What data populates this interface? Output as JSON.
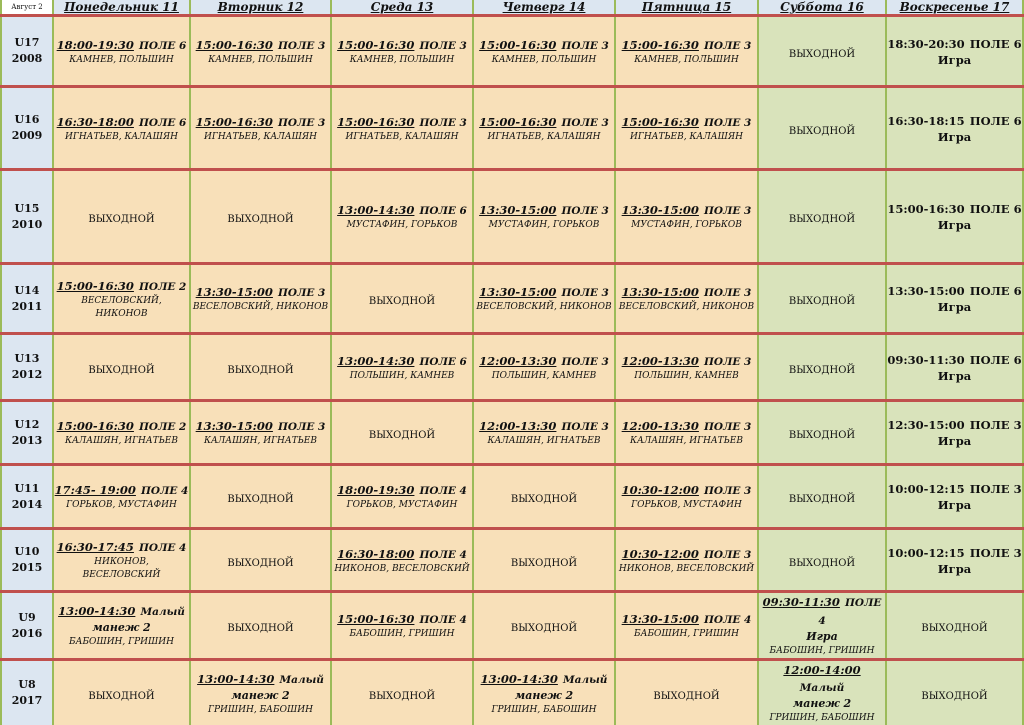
{
  "corner": "Август 2",
  "days": [
    "Понедельник 11",
    "Вторник 12",
    "Среда 13",
    "Четверг 14",
    "Пятница 15",
    "Суббота 16",
    "Воскресенье 17"
  ],
  "off_label": "ВЫХОДНОЙ",
  "colors": {
    "weekday_bg": "#f8e0b9",
    "weekend_bg": "#d9e3bb",
    "header_bg": "#dce6f1",
    "row_divider": "#c0504d",
    "column_divider": "#9bbb59"
  },
  "rows": [
    {
      "group": "U17",
      "year": "2008",
      "cells": [
        {
          "time": "18:00-19:30",
          "place": "ПОЛЕ 6",
          "coaches": "КАМНЕВ, ПОЛЬШИН"
        },
        {
          "time": "15:00-16:30",
          "place": "ПОЛЕ 3",
          "coaches": "КАМНЕВ, ПОЛЬШИН"
        },
        {
          "time": "15:00-16:30",
          "place": "ПОЛЕ 3",
          "coaches": "КАМНЕВ, ПОЛЬШИН"
        },
        {
          "time": "15:00-16:30",
          "place": "ПОЛЕ 3",
          "coaches": "КАМНЕВ, ПОЛЬШИН"
        },
        {
          "time": "15:00-16:30",
          "place": "ПОЛЕ 3",
          "coaches": "КАМНЕВ, ПОЛЬШИН"
        },
        {
          "off": "ВЫХОДНОЙ"
        },
        {
          "time": "18:30-20:30",
          "place": "ПОЛЕ 6",
          "extra": "Игра"
        }
      ]
    },
    {
      "group": "U16",
      "year": "2009",
      "cells": [
        {
          "time": "16:30-18:00",
          "place": "ПОЛЕ 6",
          "coaches": "ИГНАТЬЕВ, КАЛАШЯН"
        },
        {
          "time": "15:00-16:30",
          "place": "ПОЛЕ 3",
          "coaches": "ИГНАТЬЕВ, КАЛАШЯН"
        },
        {
          "time": "15:00-16:30",
          "place": "ПОЛЕ 3",
          "coaches": "ИГНАТЬЕВ, КАЛАШЯН"
        },
        {
          "time": "15:00-16:30",
          "place": "ПОЛЕ 3",
          "coaches": "ИГНАТЬЕВ, КАЛАШЯН"
        },
        {
          "time": "15:00-16:30",
          "place": "ПОЛЕ 3",
          "coaches": "ИГНАТЬЕВ, КАЛАШЯН"
        },
        {
          "off": "ВЫХОДНОЙ"
        },
        {
          "time": "16:30-18:15",
          "place": "ПОЛЕ 6",
          "extra": "Игра"
        }
      ]
    },
    {
      "group": "U15",
      "year": "2010",
      "cells": [
        {
          "off": "ВЫХОДНОЙ"
        },
        {
          "off": "ВЫХОДНОЙ"
        },
        {
          "time": "13:00-14:30",
          "place": "ПОЛЕ 6",
          "coaches": "МУСТАФИН, ГОРЬКОВ"
        },
        {
          "time": "13:30-15:00",
          "place": "ПОЛЕ 3",
          "coaches": "МУСТАФИН, ГОРЬКОВ"
        },
        {
          "time": "13:30-15:00",
          "place": "ПОЛЕ 3",
          "coaches": "МУСТАФИН, ГОРЬКОВ"
        },
        {
          "off": "ВЫХОДНОЙ"
        },
        {
          "time": "15:00-16:30",
          "place": "ПОЛЕ 6",
          "extra": "Игра"
        }
      ]
    },
    {
      "group": "U14",
      "year": "2011",
      "cells": [
        {
          "time": "15:00-16:30",
          "place": "ПОЛЕ 2",
          "coaches": "ВЕСЕЛОВСКИЙ, НИКОНОВ"
        },
        {
          "time": "13:30-15:00",
          "place": "ПОЛЕ 3",
          "coaches": "ВЕСЕЛОВСКИЙ, НИКОНОВ"
        },
        {
          "off": "ВЫХОДНОЙ"
        },
        {
          "time": "13:30-15:00",
          "place": "ПОЛЕ 3",
          "coaches": "ВЕСЕЛОВСКИЙ, НИКОНОВ"
        },
        {
          "time": "13:30-15:00",
          "place": "ПОЛЕ 3",
          "coaches": "ВЕСЕЛОВСКИЙ, НИКОНОВ"
        },
        {
          "off": "ВЫХОДНОЙ"
        },
        {
          "time": "13:30-15:00",
          "place": "ПОЛЕ 6",
          "extra": "Игра"
        }
      ]
    },
    {
      "group": "U13",
      "year": "2012",
      "cells": [
        {
          "off": "ВЫХОДНОЙ"
        },
        {
          "off": "ВЫХОДНОЙ"
        },
        {
          "time": "13:00-14:30",
          "place": "ПОЛЕ 6",
          "coaches": "ПОЛЬШИН, КАМНЕВ"
        },
        {
          "time": "12:00-13:30",
          "place": "ПОЛЕ 3",
          "coaches": "ПОЛЬШИН, КАМНЕВ"
        },
        {
          "time": "12:00-13:30",
          "place": "ПОЛЕ 3",
          "coaches": "ПОЛЬШИН, КАМНЕВ"
        },
        {
          "off": "ВЫХОДНОЙ"
        },
        {
          "time": "09:30-11:30",
          "place": "ПОЛЕ 6",
          "extra": "Игра"
        }
      ]
    },
    {
      "group": "U12",
      "year": "2013",
      "cells": [
        {
          "time": "15:00-16:30",
          "place": "ПОЛЕ 2",
          "coaches": "КАЛАШЯН, ИГНАТЬЕВ"
        },
        {
          "time": "13:30-15:00",
          "place": "ПОЛЕ 3",
          "coaches": "КАЛАШЯН, ИГНАТЬЕВ"
        },
        {
          "off": "ВЫХОДНОЙ"
        },
        {
          "time": "12:00-13:30",
          "place": "ПОЛЕ 3",
          "coaches": "КАЛАШЯН, ИГНАТЬЕВ"
        },
        {
          "time": "12:00-13:30",
          "place": "ПОЛЕ 3",
          "coaches": "КАЛАШЯН, ИГНАТЬЕВ"
        },
        {
          "off": "ВЫХОДНОЙ"
        },
        {
          "time": "12:30-15:00",
          "place": "ПОЛЕ 3",
          "extra": "Игра"
        }
      ]
    },
    {
      "group": "U11",
      "year": "2014",
      "cells": [
        {
          "time": "17:45- 19:00",
          "place": "ПОЛЕ 4",
          "coaches": "ГОРЬКОВ, МУСТАФИН"
        },
        {
          "off": "ВЫХОДНОЙ"
        },
        {
          "time": "18:00-19:30",
          "place": "ПОЛЕ 4",
          "coaches": "ГОРЬКОВ, МУСТАФИН"
        },
        {
          "off": "ВЫХОДНОЙ"
        },
        {
          "time": "10:30-12:00",
          "place": "ПОЛЕ 3",
          "coaches": "ГОРЬКОВ, МУСТАФИН"
        },
        {
          "off": "ВЫХОДНОЙ"
        },
        {
          "time": "10:00-12:15",
          "place": "ПОЛЕ 3",
          "extra": "Игра"
        }
      ]
    },
    {
      "group": "U10",
      "year": "2015",
      "cells": [
        {
          "time": "16:30-17:45",
          "place": "ПОЛЕ 4",
          "coaches": "НИКОНОВ, ВЕСЕЛОВСКИЙ"
        },
        {
          "off": "ВЫХОДНОЙ"
        },
        {
          "time": "16:30-18:00",
          "place": "ПОЛЕ 4",
          "coaches": "НИКОНОВ, ВЕСЕЛОВСКИЙ"
        },
        {
          "off": "ВЫХОДНОЙ"
        },
        {
          "time": "10:30-12:00",
          "place": "ПОЛЕ 3",
          "coaches": "НИКОНОВ, ВЕСЕЛОВСКИЙ"
        },
        {
          "off": "ВЫХОДНОЙ"
        },
        {
          "time": "10:00-12:15",
          "place": "ПОЛЕ 3",
          "extra": "Игра"
        }
      ]
    },
    {
      "group": "U9",
      "year": "2016",
      "cells": [
        {
          "time": "13:00-14:30",
          "place": "Малый",
          "extra": "манеж 2",
          "coaches": "БАБОШИН, ГРИШИН"
        },
        {
          "off": "ВЫХОДНОЙ"
        },
        {
          "time": "15:00-16:30",
          "place": "ПОЛЕ 4",
          "coaches": "БАБОШИН, ГРИШИН"
        },
        {
          "off": "ВЫХОДНОЙ"
        },
        {
          "time": "13:30-15:00",
          "place": "ПОЛЕ 4",
          "coaches": "БАБОШИН, ГРИШИН"
        },
        {
          "time": "09:30-11:30",
          "place": "ПОЛЕ 4",
          "extra": "Игра",
          "coaches": "БАБОШИН, ГРИШИН"
        },
        {
          "off": "ВЫХОДНОЙ"
        }
      ]
    },
    {
      "group": "U8",
      "year": "2017",
      "cells": [
        {
          "off": "ВЫХОДНОЙ"
        },
        {
          "time": "13:00-14:30",
          "place": "Малый",
          "extra": "манеж 2",
          "coaches": "ГРИШИН, БАБОШИН"
        },
        {
          "off": "ВЫХОДНОЙ"
        },
        {
          "time": "13:00-14:30",
          "place": "Малый",
          "extra": "манеж 2",
          "coaches": "ГРИШИН, БАБОШИН"
        },
        {
          "off": "ВЫХОДНОЙ"
        },
        {
          "time": "12:00-14:00",
          "place": "Малый",
          "extra": "манеж 2",
          "coaches": "ГРИШИН, БАБОШИН"
        },
        {
          "off": "ВЫХОДНОЙ"
        }
      ]
    }
  ]
}
